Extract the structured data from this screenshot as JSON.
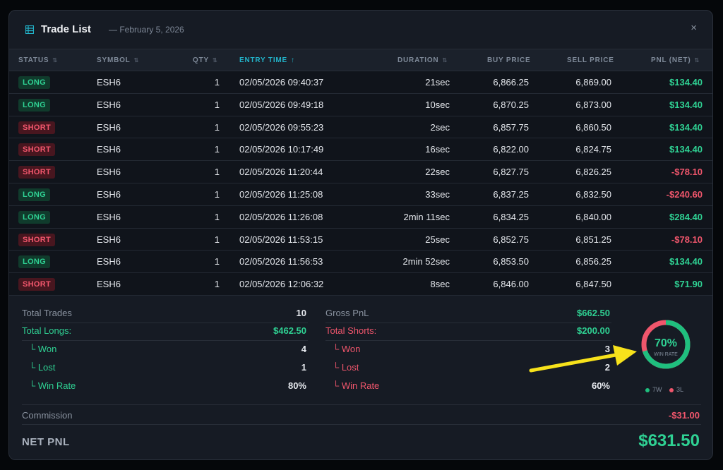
{
  "header": {
    "title": "Trade List",
    "subtitle": "— February 5, 2026",
    "close_glyph": "×",
    "title_icon": "table-icon",
    "close_icon": "close-icon"
  },
  "table": {
    "columns": [
      {
        "label": "STATUS",
        "sort_glyph": "⇅"
      },
      {
        "label": "SYMBOL",
        "sort_glyph": "⇅"
      },
      {
        "label": "QTY",
        "sort_glyph": "⇅"
      },
      {
        "label": "ENTRY TIME",
        "sort_glyph": "↑"
      },
      {
        "label": "DURATION",
        "sort_glyph": "⇅"
      },
      {
        "label": "BUY PRICE",
        "sort_glyph": ""
      },
      {
        "label": "SELL PRICE",
        "sort_glyph": ""
      },
      {
        "label": "PNL (NET)",
        "sort_glyph": "⇅"
      }
    ],
    "rows": [
      {
        "status": "LONG",
        "symbol": "ESH6",
        "qty": "1",
        "entry_time": "02/05/2026 09:40:37",
        "duration": "21sec",
        "buy": "6,866.25",
        "sell": "6,869.00",
        "pnl": "$134.40"
      },
      {
        "status": "LONG",
        "symbol": "ESH6",
        "qty": "1",
        "entry_time": "02/05/2026 09:49:18",
        "duration": "10sec",
        "buy": "6,870.25",
        "sell": "6,873.00",
        "pnl": "$134.40"
      },
      {
        "status": "SHORT",
        "symbol": "ESH6",
        "qty": "1",
        "entry_time": "02/05/2026 09:55:23",
        "duration": "2sec",
        "buy": "6,857.75",
        "sell": "6,860.50",
        "pnl": "$134.40"
      },
      {
        "status": "SHORT",
        "symbol": "ESH6",
        "qty": "1",
        "entry_time": "02/05/2026 10:17:49",
        "duration": "16sec",
        "buy": "6,822.00",
        "sell": "6,824.75",
        "pnl": "$134.40"
      },
      {
        "status": "SHORT",
        "symbol": "ESH6",
        "qty": "1",
        "entry_time": "02/05/2026 11:20:44",
        "duration": "22sec",
        "buy": "6,827.75",
        "sell": "6,826.25",
        "pnl": "-$78.10"
      },
      {
        "status": "LONG",
        "symbol": "ESH6",
        "qty": "1",
        "entry_time": "02/05/2026 11:25:08",
        "duration": "33sec",
        "buy": "6,837.25",
        "sell": "6,832.50",
        "pnl": "-$240.60"
      },
      {
        "status": "LONG",
        "symbol": "ESH6",
        "qty": "1",
        "entry_time": "02/05/2026 11:26:08",
        "duration": "2min 11sec",
        "buy": "6,834.25",
        "sell": "6,840.00",
        "pnl": "$284.40"
      },
      {
        "status": "SHORT",
        "symbol": "ESH6",
        "qty": "1",
        "entry_time": "02/05/2026 11:53:15",
        "duration": "25sec",
        "buy": "6,852.75",
        "sell": "6,851.25",
        "pnl": "-$78.10"
      },
      {
        "status": "LONG",
        "symbol": "ESH6",
        "qty": "1",
        "entry_time": "02/05/2026 11:56:53",
        "duration": "2min 52sec",
        "buy": "6,853.50",
        "sell": "6,856.25",
        "pnl": "$134.40"
      },
      {
        "status": "SHORT",
        "symbol": "ESH6",
        "qty": "1",
        "entry_time": "02/05/2026 12:06:32",
        "duration": "8sec",
        "buy": "6,846.00",
        "sell": "6,847.50",
        "pnl": "$71.90"
      }
    ]
  },
  "summary": {
    "left": {
      "total_trades_label": "Total Trades",
      "total_trades_value": "10",
      "total_longs_label": "Total Longs:",
      "total_longs_value": "$462.50",
      "won_label": "└ Won",
      "won_value": "4",
      "lost_label": "└ Lost",
      "lost_value": "1",
      "winrate_label": "└ Win Rate",
      "winrate_value": "80%"
    },
    "right": {
      "gross_label": "Gross PnL",
      "gross_value": "$662.50",
      "total_shorts_label": "Total Shorts:",
      "total_shorts_value": "$200.00",
      "won_label": "└ Won",
      "won_value": "3",
      "lost_label": "└ Lost",
      "lost_value": "2",
      "winrate_label": "└ Win Rate",
      "winrate_value": "60%"
    },
    "donut": {
      "percent_label": "70%",
      "caption": "WIN RATE",
      "win_fraction": 0.7,
      "legend_win": "7W",
      "legend_loss": "3L",
      "win_color": "#1fbf7e",
      "loss_color": "#f0566c"
    },
    "commission_label": "Commission",
    "commission_value": "-$31.00",
    "net_label": "NET PNL",
    "net_value": "$631.50"
  },
  "annotation": {
    "arrow_color": "#f7e21b"
  }
}
